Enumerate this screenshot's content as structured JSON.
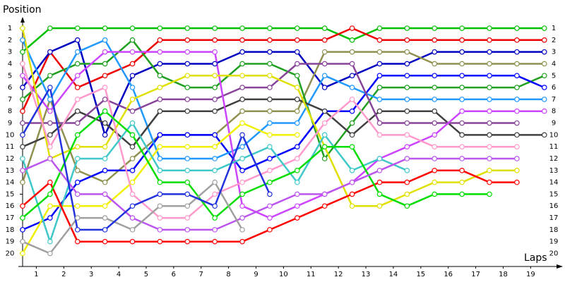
{
  "chart_data": {
    "type": "line",
    "ylabel": "Position",
    "xlabel": "Laps",
    "x": [
      0,
      1,
      2,
      3,
      4,
      5,
      6,
      7,
      8,
      9,
      10,
      11,
      12,
      13,
      14,
      15,
      16,
      17,
      18,
      19
    ],
    "xlim": [
      0,
      19.7
    ],
    "ylim": [
      21.1,
      0
    ],
    "yticks": [
      1,
      2,
      3,
      4,
      5,
      6,
      7,
      8,
      9,
      10,
      11,
      12,
      13,
      14,
      15,
      16,
      17,
      18,
      19,
      20
    ],
    "xticks": [
      {
        "value": 0.5,
        "label": "1"
      },
      {
        "value": 1.5,
        "label": "2"
      },
      {
        "value": 2.5,
        "label": "3"
      },
      {
        "value": 3.5,
        "label": "4"
      },
      {
        "value": 4.5,
        "label": "5"
      },
      {
        "value": 5.5,
        "label": "6"
      },
      {
        "value": 6.5,
        "label": "7"
      },
      {
        "value": 7.5,
        "label": "8"
      },
      {
        "value": 8.5,
        "label": "9"
      },
      {
        "value": 9.5,
        "label": "10"
      },
      {
        "value": 10.5,
        "label": "11"
      },
      {
        "value": 11.5,
        "label": "12"
      },
      {
        "value": 12.5,
        "label": "13"
      },
      {
        "value": 13.5,
        "label": "14"
      },
      {
        "value": 14.5,
        "label": "15"
      },
      {
        "value": 15.5,
        "label": "16"
      },
      {
        "value": 16.5,
        "label": "17"
      },
      {
        "value": 17.5,
        "label": "18"
      },
      {
        "value": 18.5,
        "label": "19"
      }
    ],
    "series": [
      {
        "color": "#00c000",
        "values": [
          3,
          1,
          1,
          1,
          1,
          1,
          1,
          1,
          1,
          1,
          1,
          1,
          2,
          1,
          1,
          1,
          1,
          1,
          1,
          1
        ]
      },
      {
        "color": "#ee0000",
        "values": [
          8,
          3,
          6,
          5,
          4,
          2,
          2,
          2,
          2,
          2,
          2,
          2,
          1,
          2,
          2,
          2,
          2,
          2,
          2,
          2
        ]
      },
      {
        "color": "#0000c0",
        "values": [
          6,
          3,
          2,
          10,
          5,
          4,
          4,
          4,
          3,
          3,
          3,
          6,
          5,
          4,
          4,
          3,
          3,
          3,
          3,
          3
        ]
      },
      {
        "color": "#909050",
        "values": [
          14,
          7,
          13,
          14,
          12,
          10,
          10,
          10,
          8,
          8,
          8,
          3,
          3,
          3,
          3,
          4,
          4,
          4,
          4,
          4
        ]
      },
      {
        "color": "#20a020",
        "values": [
          7,
          5,
          4,
          4,
          2,
          5,
          6,
          6,
          4,
          4,
          5,
          12,
          9,
          6,
          6,
          6,
          6,
          6,
          6,
          5
        ]
      },
      {
        "color": "#0000ff",
        "values": [
          18,
          17,
          14,
          13,
          13,
          10,
          10,
          10,
          13,
          12,
          11,
          8,
          8,
          5,
          5,
          5,
          5,
          5,
          5,
          6
        ]
      },
      {
        "color": "#2299ff",
        "values": [
          2,
          7,
          3,
          2,
          6,
          12,
          12,
          12,
          11,
          9,
          9,
          5,
          6,
          7,
          7,
          7,
          7,
          7,
          7,
          7
        ]
      },
      {
        "color": "#404040",
        "values": [
          11,
          10,
          8,
          9,
          11,
          8,
          8,
          8,
          7,
          7,
          7,
          8,
          10,
          8,
          8,
          8,
          10,
          10,
          10,
          10
        ]
      },
      {
        "color": "#884499",
        "values": [
          9,
          9,
          9,
          7,
          8,
          7,
          7,
          7,
          6,
          6,
          4,
          4,
          4,
          9,
          9,
          9,
          9,
          9,
          9,
          null
        ]
      },
      {
        "color": "#cc44ff",
        "values": [
          5,
          8,
          5,
          3,
          3,
          3,
          3,
          3,
          16,
          17,
          16,
          15,
          14,
          12,
          11,
          10,
          8,
          8,
          8,
          8
        ]
      },
      {
        "color": "#e0e000",
        "values": [
          1,
          12,
          11,
          11,
          7,
          6,
          5,
          5,
          5,
          5,
          6,
          11,
          16,
          16,
          15,
          14,
          14,
          13,
          13,
          null
        ]
      },
      {
        "color": "#f0f000",
        "values": [
          20,
          16,
          16,
          16,
          14,
          11,
          11,
          11,
          9,
          10,
          10,
          null,
          null,
          null,
          null,
          null,
          null,
          null,
          null,
          null
        ]
      },
      {
        "color": "#ff99cc",
        "values": [
          4,
          11,
          7,
          6,
          15,
          17,
          17,
          15,
          14,
          13,
          12,
          9,
          7,
          10,
          10,
          11,
          11,
          11,
          11,
          null
        ]
      },
      {
        "color": "#40c8c8",
        "values": [
          12,
          19,
          12,
          12,
          9,
          13,
          13,
          13,
          12,
          11,
          14,
          10,
          13,
          12,
          13,
          null,
          null,
          null,
          null,
          null
        ]
      },
      {
        "color": "#ff0000",
        "values": [
          16,
          14,
          19,
          19,
          19,
          19,
          19,
          19,
          19,
          18,
          17,
          16,
          15,
          14,
          14,
          13,
          13,
          14,
          14,
          null
        ]
      },
      {
        "color": "#00dd00",
        "values": [
          17,
          15,
          10,
          8,
          10,
          14,
          14,
          17,
          15,
          14,
          13,
          11,
          11,
          15,
          16,
          15,
          15,
          15,
          null,
          null
        ]
      },
      {
        "color": "#bb55ee",
        "values": [
          13,
          12,
          15,
          15,
          17,
          18,
          18,
          18,
          17,
          16,
          15,
          15,
          14,
          13,
          12,
          12,
          12,
          12,
          12,
          null
        ]
      },
      {
        "color": "#a0a0a0",
        "values": [
          19,
          20,
          17,
          17,
          18,
          16,
          16,
          14,
          18,
          null,
          null,
          null,
          null,
          null,
          null,
          null,
          null,
          null,
          null,
          null
        ]
      },
      {
        "color": "#2233dd",
        "values": [
          10,
          6,
          18,
          18,
          16,
          15,
          15,
          16,
          10,
          15,
          null,
          null,
          null,
          null,
          null,
          null,
          null,
          null,
          null,
          null
        ]
      }
    ]
  }
}
